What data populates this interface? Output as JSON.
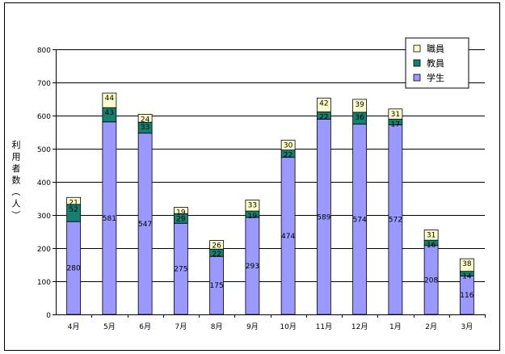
{
  "chart_data": {
    "type": "bar",
    "stacked": true,
    "categories": [
      "4月",
      "5月",
      "6月",
      "7月",
      "8月",
      "9月",
      "10月",
      "11月",
      "12月",
      "1月",
      "2月",
      "3月"
    ],
    "series": [
      {
        "name": "学生",
        "color": "#9999ff",
        "values": [
          280,
          581,
          547,
          275,
          175,
          293,
          474,
          589,
          574,
          572,
          208,
          116
        ]
      },
      {
        "name": "教員",
        "color": "#138070",
        "values": [
          52,
          43,
          33,
          29,
          22,
          19,
          22,
          22,
          36,
          17,
          16,
          14
        ]
      },
      {
        "name": "職員",
        "color": "#ffffcc",
        "values": [
          21,
          44,
          24,
          19,
          26,
          33,
          30,
          42,
          39,
          31,
          31,
          38
        ]
      }
    ],
    "ylabel": "利用者数（人）",
    "ylim": [
      0,
      800
    ],
    "yticks": [
      0,
      100,
      200,
      300,
      400,
      500,
      600,
      700,
      800
    ],
    "grid": true,
    "legend_position": "top-right",
    "legend_order": [
      "職員",
      "教員",
      "学生"
    ]
  }
}
